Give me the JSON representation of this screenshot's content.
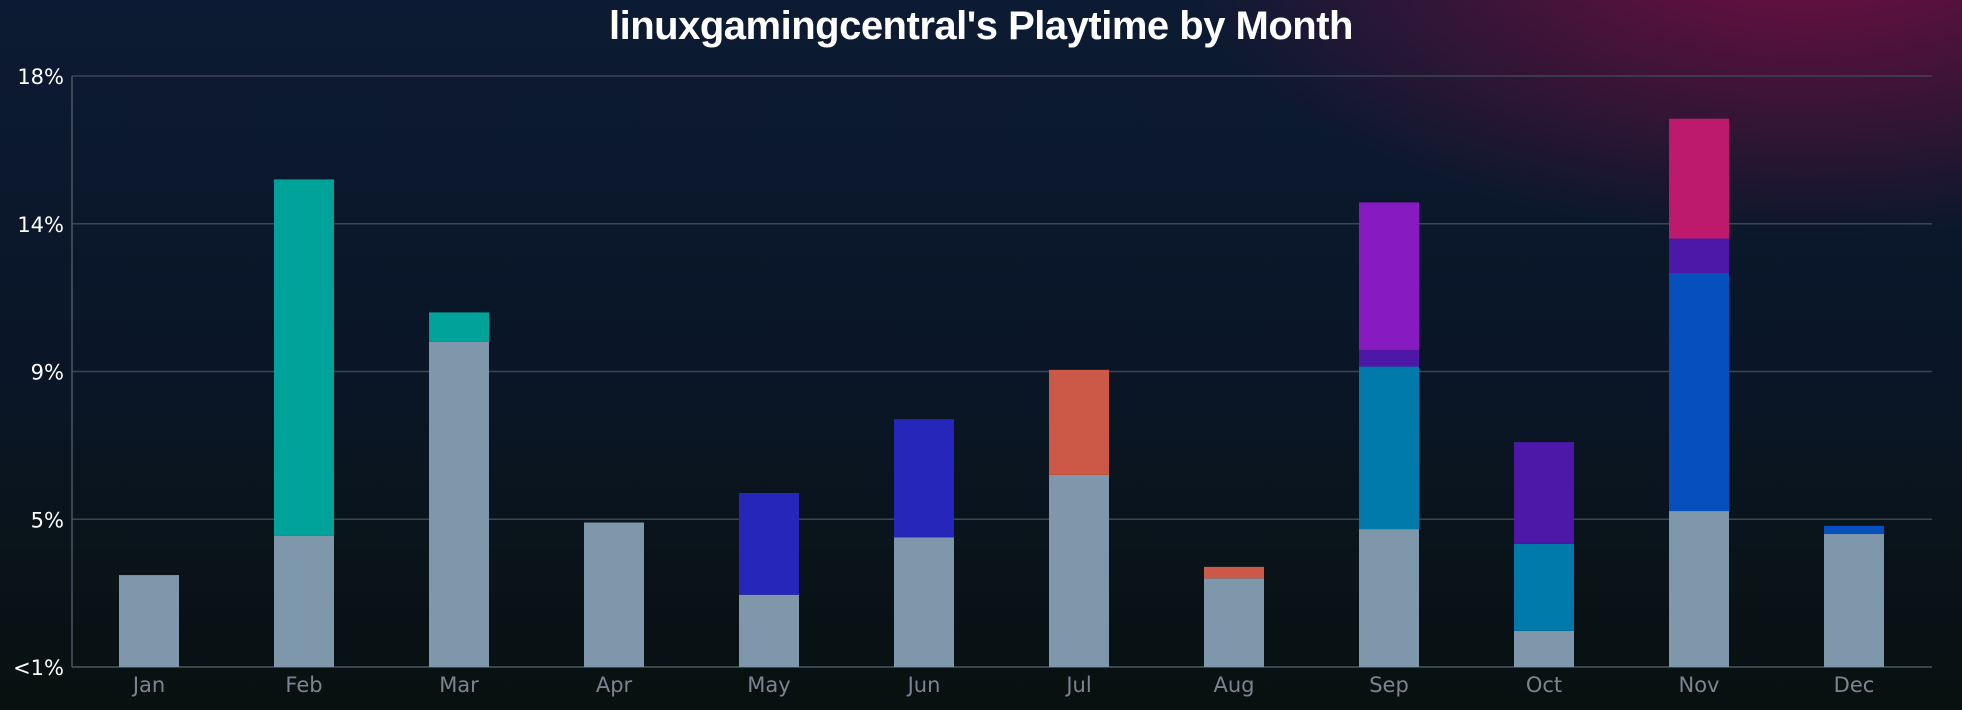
{
  "chart_data": {
    "type": "bar",
    "stacked": true,
    "title": "linuxgamingcentral's Playtime by Month",
    "xlabel": "",
    "ylabel": "",
    "categories": [
      "Jan",
      "Feb",
      "Mar",
      "Apr",
      "May",
      "Jun",
      "Jul",
      "Aug",
      "Sep",
      "Oct",
      "Nov",
      "Dec"
    ],
    "y_ticks": [
      {
        "label": "<1%",
        "value": 0
      },
      {
        "label": "5%",
        "value": 4.5
      },
      {
        "label": "9%",
        "value": 9
      },
      {
        "label": "14%",
        "value": 13.5
      },
      {
        "label": "18%",
        "value": 18
      }
    ],
    "ylim": [
      0,
      18
    ],
    "grid": true,
    "series": [
      {
        "color": "#7f97aa",
        "values": [
          2.8,
          4.0,
          9.9,
          4.4,
          2.2,
          3.95,
          5.85,
          2.7,
          4.2,
          1.1,
          4.75,
          4.05
        ]
      },
      {
        "color": "#00a39a",
        "values": [
          0,
          10.85,
          0.9,
          0,
          0,
          0,
          0,
          0,
          0,
          0,
          0,
          0
        ]
      },
      {
        "color": "#2626bb",
        "values": [
          0,
          0,
          0,
          0,
          3.1,
          3.6,
          0,
          0,
          0,
          0,
          0,
          0
        ]
      },
      {
        "color": "#cc5848",
        "values": [
          0,
          0,
          0,
          0,
          0,
          0,
          3.2,
          0.35,
          0,
          0,
          0,
          0
        ]
      },
      {
        "color": "#0079ab",
        "values": [
          0,
          0,
          0,
          0,
          0,
          0,
          0,
          0,
          4.95,
          2.65,
          0,
          0
        ]
      },
      {
        "color": "#0550bd",
        "values": [
          0,
          0,
          0,
          0,
          0,
          0,
          0,
          0,
          0,
          0,
          7.25,
          0.25
        ]
      },
      {
        "color": "#4d18a8",
        "values": [
          0,
          0,
          0,
          0,
          0,
          0,
          0,
          0,
          0.5,
          3.1,
          1.05,
          0
        ]
      },
      {
        "color": "#871ac0",
        "values": [
          0,
          0,
          0,
          0,
          0,
          0,
          0,
          0,
          4.5,
          0,
          0,
          0
        ]
      },
      {
        "color": "#bd1a6e",
        "values": [
          0,
          0,
          0,
          0,
          0,
          0,
          0,
          0,
          0,
          0,
          3.65,
          0
        ]
      }
    ]
  }
}
